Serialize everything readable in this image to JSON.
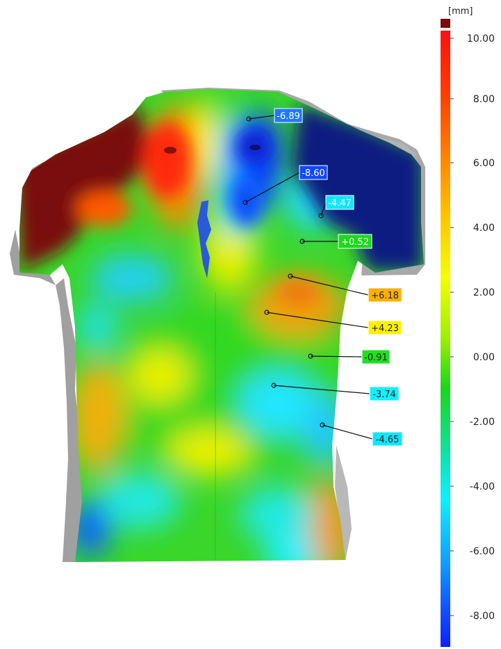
{
  "unit": "[mm]",
  "colorbar": {
    "ticks": [
      "10.00",
      "8.00",
      "6.00",
      "4.00",
      "2.00",
      "0.00",
      "-2.00",
      "-4.00",
      "-6.00",
      "-8.00"
    ],
    "range": [
      -9.5,
      10.5
    ],
    "overflow_color": "#7a0c0c",
    "gradient": [
      "#ff1010",
      "#ff6a00",
      "#ffc000",
      "#f8ff00",
      "#a8f000",
      "#18d818",
      "#10e0b0",
      "#10f0ff",
      "#10a8ff",
      "#1060ff",
      "#1020ff"
    ]
  },
  "annotations": [
    {
      "id": "m1",
      "text": "-6.89",
      "value": -6.89,
      "color": "#1f78ff",
      "text_color": "#ffffff"
    },
    {
      "id": "m2",
      "text": "-8.60",
      "value": -8.6,
      "color": "#1048ff",
      "text_color": "#ffffff"
    },
    {
      "id": "m3",
      "text": "-4.47",
      "value": -4.47,
      "color": "#10e6ff",
      "text_color": "#ffffff"
    },
    {
      "id": "m4",
      "text": "+0.52",
      "value": 0.52,
      "color": "#1ed81e",
      "text_color": "#ffffff"
    },
    {
      "id": "m5",
      "text": "+6.18",
      "value": 6.18,
      "color": "#ffb000",
      "text_color": "#222222"
    },
    {
      "id": "m6",
      "text": "+4.23",
      "value": 4.23,
      "color": "#fff000",
      "text_color": "#222222"
    },
    {
      "id": "m7",
      "text": "-0.91",
      "value": -0.91,
      "color": "#20e020",
      "text_color": "#222222"
    },
    {
      "id": "m8",
      "text": "-3.74",
      "value": -3.74,
      "color": "#10f0ff",
      "text_color": "#222222"
    },
    {
      "id": "m9",
      "text": "-4.65",
      "value": -4.65,
      "color": "#10e6ff",
      "text_color": "#222222"
    }
  ]
}
